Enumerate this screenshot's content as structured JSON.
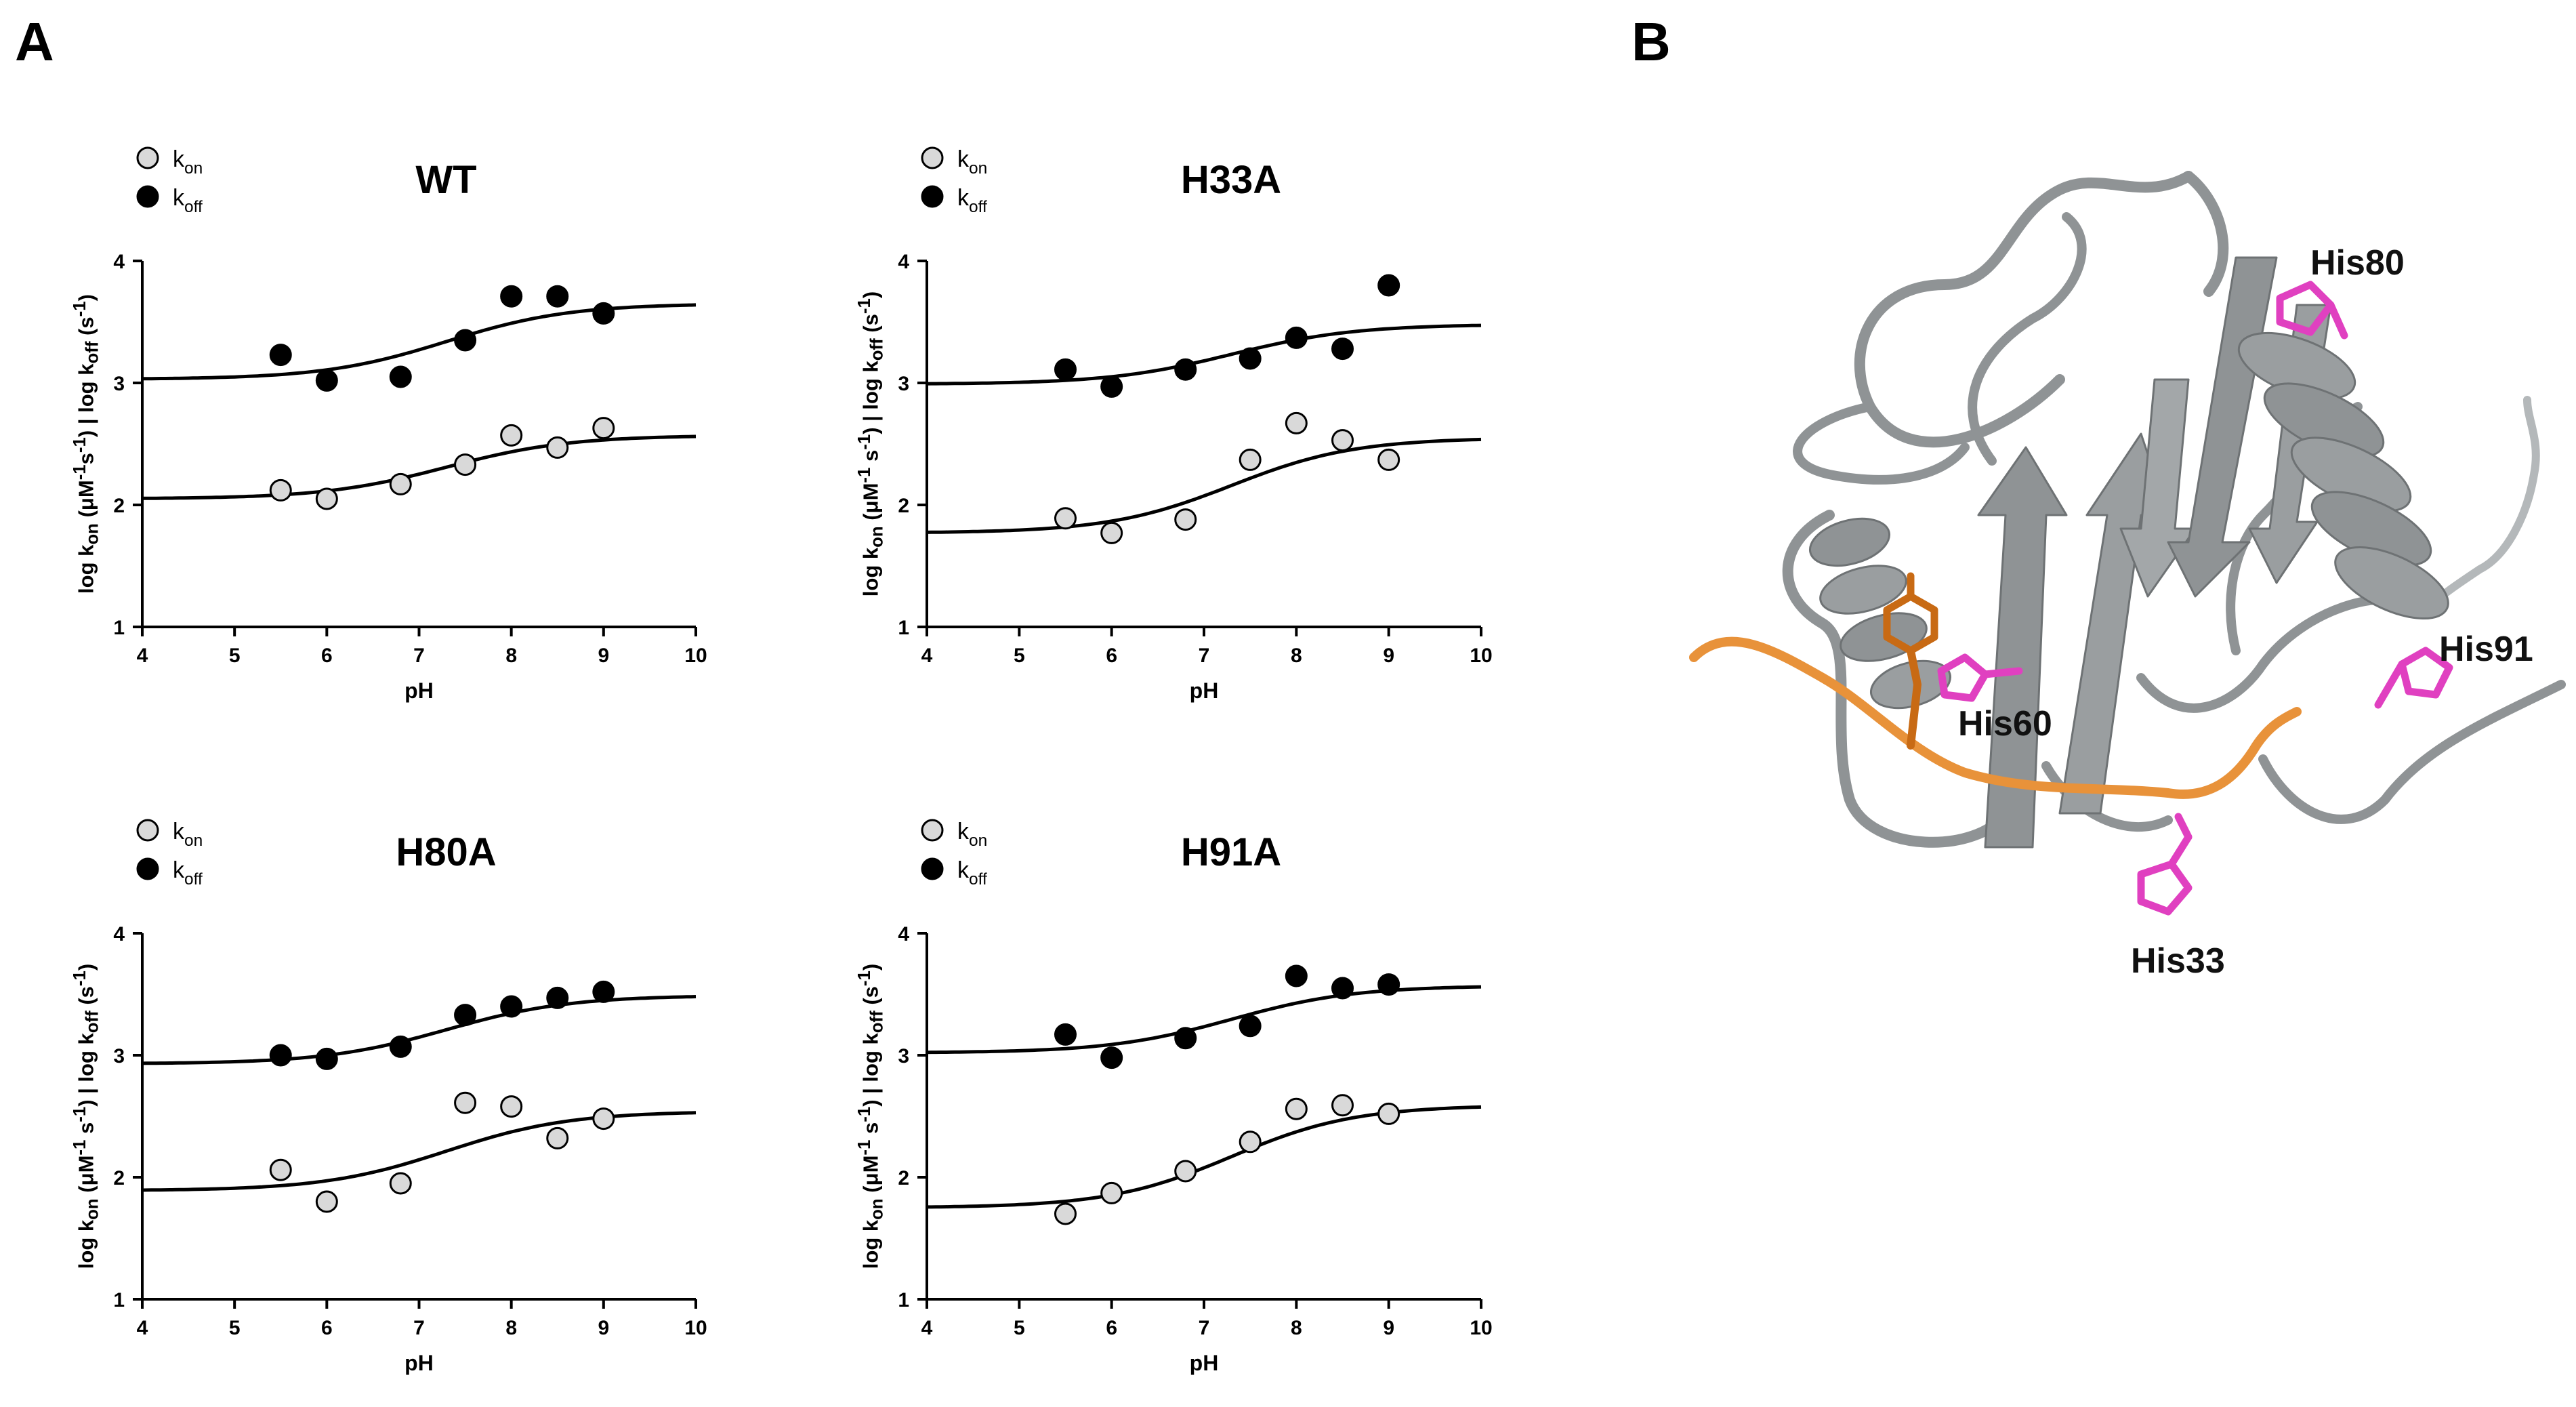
{
  "panel_labels": {
    "a": "A",
    "b": "B"
  },
  "chart_data": [
    {
      "type": "scatter",
      "title": "WT",
      "xlabel": "pH",
      "ylabel_html": "log k<sub>on</sub> (μM<sup>-1</sup>s<sup>-1</sup>) | log k<sub>off</sub> (s<sup>-1</sup>)",
      "xlim": [
        4,
        10
      ],
      "ylim": [
        1,
        4
      ],
      "xticks": [
        4,
        5,
        6,
        7,
        8,
        9,
        10
      ],
      "yticks": [
        1,
        2,
        3,
        4
      ],
      "legend": [
        {
          "key": "kon",
          "main": "k",
          "sub": "on"
        },
        {
          "key": "koff",
          "main": "k",
          "sub": "off"
        }
      ],
      "series": [
        {
          "name": "kon",
          "fill": "#d9d9d9",
          "x": [
            5.5,
            6,
            6.8,
            7.5,
            8,
            8.5,
            9
          ],
          "y": [
            2.12,
            2.05,
            2.17,
            2.33,
            2.57,
            2.47,
            2.63
          ],
          "fit": {
            "low": 2.05,
            "high": 2.57,
            "pka": 7.3,
            "n": 1.5
          }
        },
        {
          "name": "koff",
          "fill": "#000000",
          "x": [
            5.5,
            6,
            6.8,
            7.5,
            8,
            8.5,
            9
          ],
          "y": [
            3.23,
            3.02,
            3.05,
            3.35,
            3.71,
            3.71,
            3.57
          ],
          "fit": {
            "low": 3.03,
            "high": 3.65,
            "pka": 7.3,
            "n": 1.5
          }
        }
      ]
    },
    {
      "type": "scatter",
      "title": "H33A",
      "xlabel": "pH",
      "ylabel_html": "log k<sub>on</sub> (μM<sup>-1</sup> s<sup>-1</sup>) | log k<sub>off</sub> (s<sup>-1</sup>)",
      "xlim": [
        4,
        10
      ],
      "ylim": [
        1,
        4
      ],
      "xticks": [
        4,
        5,
        6,
        7,
        8,
        9,
        10
      ],
      "yticks": [
        1,
        2,
        3,
        4
      ],
      "legend": [
        {
          "key": "kon",
          "main": "k",
          "sub": "on"
        },
        {
          "key": "koff",
          "main": "k",
          "sub": "off"
        }
      ],
      "series": [
        {
          "name": "kon",
          "fill": "#d9d9d9",
          "x": [
            5.5,
            6,
            6.8,
            7.5,
            8,
            8.5,
            9
          ],
          "y": [
            1.89,
            1.77,
            1.88,
            2.37,
            2.67,
            2.53,
            2.37
          ],
          "fit": {
            "low": 1.77,
            "high": 2.55,
            "pka": 7.3,
            "n": 1.5
          }
        },
        {
          "name": "koff",
          "fill": "#000000",
          "x": [
            5.5,
            6,
            6.8,
            7.5,
            8,
            8.5,
            9
          ],
          "y": [
            3.11,
            2.97,
            3.11,
            3.2,
            3.37,
            3.28,
            3.8
          ],
          "fit": {
            "low": 2.99,
            "high": 3.48,
            "pka": 7.3,
            "n": 1.5
          }
        }
      ]
    },
    {
      "type": "scatter",
      "title": "H80A",
      "xlabel": "pH",
      "ylabel_html": "log k<sub>on</sub> (μM<sup>-1</sup> s<sup>-1</sup>) | log k<sub>off</sub> (s<sup>-1</sup>)",
      "xlim": [
        4,
        10
      ],
      "ylim": [
        1,
        4
      ],
      "xticks": [
        4,
        5,
        6,
        7,
        8,
        9,
        10
      ],
      "yticks": [
        1,
        2,
        3,
        4
      ],
      "legend": [
        {
          "key": "kon",
          "main": "k",
          "sub": "on"
        },
        {
          "key": "koff",
          "main": "k",
          "sub": "off"
        }
      ],
      "series": [
        {
          "name": "kon",
          "fill": "#d9d9d9",
          "x": [
            5.5,
            6,
            6.8,
            7.5,
            8,
            8.5,
            9
          ],
          "y": [
            2.06,
            1.8,
            1.95,
            2.61,
            2.58,
            2.32,
            2.48
          ],
          "fit": {
            "low": 1.89,
            "high": 2.54,
            "pka": 7.3,
            "n": 1.5
          }
        },
        {
          "name": "koff",
          "fill": "#000000",
          "x": [
            5.5,
            6,
            6.8,
            7.5,
            8,
            8.5,
            9
          ],
          "y": [
            3.0,
            2.97,
            3.07,
            3.33,
            3.4,
            3.47,
            3.52
          ],
          "fit": {
            "low": 2.93,
            "high": 3.49,
            "pka": 7.3,
            "n": 1.5
          }
        }
      ]
    },
    {
      "type": "scatter",
      "title": "H91A",
      "xlabel": "pH",
      "ylabel_html": "log k<sub>on</sub> (μM<sup>-1</sup> s<sup>-1</sup>) | log k<sub>off</sub> (s<sup>-1</sup>)",
      "xlim": [
        4,
        10
      ],
      "ylim": [
        1,
        4
      ],
      "xticks": [
        4,
        5,
        6,
        7,
        8,
        9,
        10
      ],
      "yticks": [
        1,
        2,
        3,
        4
      ],
      "legend": [
        {
          "key": "kon",
          "main": "k",
          "sub": "on"
        },
        {
          "key": "koff",
          "main": "k",
          "sub": "off"
        }
      ],
      "series": [
        {
          "name": "kon",
          "fill": "#d9d9d9",
          "x": [
            5.5,
            6,
            6.8,
            7.5,
            8,
            8.5,
            9
          ],
          "y": [
            1.7,
            1.87,
            2.05,
            2.29,
            2.56,
            2.59,
            2.52
          ],
          "fit": {
            "low": 1.75,
            "high": 2.59,
            "pka": 7.3,
            "n": 1.5
          }
        },
        {
          "name": "koff",
          "fill": "#000000",
          "x": [
            5.5,
            6,
            6.8,
            7.5,
            8,
            8.5,
            9
          ],
          "y": [
            3.17,
            2.98,
            3.14,
            3.24,
            3.65,
            3.55,
            3.58
          ],
          "fit": {
            "low": 3.02,
            "high": 3.57,
            "pka": 7.3,
            "n": 1.5
          }
        }
      ]
    }
  ],
  "structure": {
    "labels": [
      "His80",
      "His91",
      "His60",
      "His33"
    ],
    "colors": {
      "protein": "#8f9395",
      "protein_light": "#b4b8ba",
      "histidine": "#e040c0",
      "peptide": "#e8923a",
      "peptide_dark": "#c86a14"
    }
  }
}
